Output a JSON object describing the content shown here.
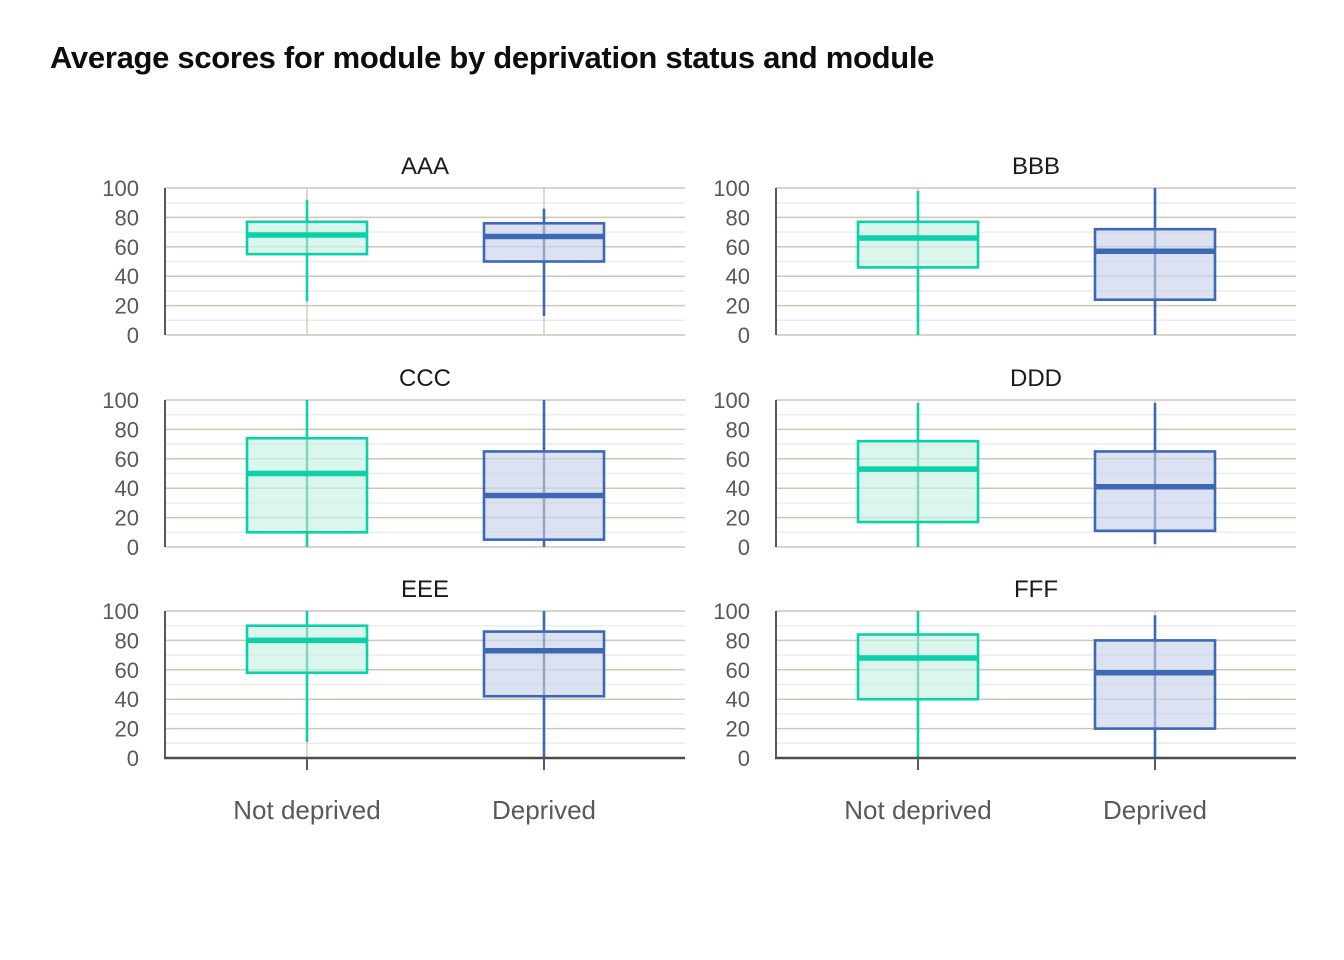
{
  "title": "Average scores for module by deprivation status and module",
  "colors": {
    "background": "#ffffff",
    "title_text": "#0d0d0d",
    "facet_title_text": "#1a1a1a",
    "axis_line": "#595959",
    "bottom_axis_line": "#4d4d4d",
    "tick_label_text": "#595959",
    "grid_major": "#cdc7b5",
    "grid_minor": "#ebebeb",
    "grid_vertical": "#c6c2b5",
    "not_deprived_stroke": "#0bd0a8",
    "not_deprived_fill": "#c9f2e5",
    "deprived_stroke": "#3c68b4",
    "deprived_fill": "#ccd4ec"
  },
  "chart_data": {
    "type": "boxplot-facets",
    "title": "Average scores for module by deprivation status and module",
    "group_labels": [
      "Not deprived",
      "Deprived"
    ],
    "y_axis": {
      "min": 0,
      "max": 100,
      "major_step": 20,
      "minor_step": 10,
      "tick_labels": [
        "0",
        "20",
        "40",
        "60",
        "80",
        "100"
      ]
    },
    "facets": [
      {
        "label": "AAA",
        "series": [
          {
            "group": "Not deprived",
            "whisker_low": 23,
            "q1": 55,
            "median": 68,
            "q3": 77,
            "whisker_high": 92
          },
          {
            "group": "Deprived",
            "whisker_low": 13,
            "q1": 50,
            "median": 67,
            "q3": 76,
            "whisker_high": 86
          }
        ]
      },
      {
        "label": "BBB",
        "series": [
          {
            "group": "Not deprived",
            "whisker_low": 0,
            "q1": 46,
            "median": 66,
            "q3": 77,
            "whisker_high": 98
          },
          {
            "group": "Deprived",
            "whisker_low": 0,
            "q1": 24,
            "median": 57,
            "q3": 72,
            "whisker_high": 100
          }
        ]
      },
      {
        "label": "CCC",
        "series": [
          {
            "group": "Not deprived",
            "whisker_low": 0,
            "q1": 10,
            "median": 50,
            "q3": 74,
            "whisker_high": 100
          },
          {
            "group": "Deprived",
            "whisker_low": 0,
            "q1": 5,
            "median": 35,
            "q3": 65,
            "whisker_high": 100
          }
        ]
      },
      {
        "label": "DDD",
        "series": [
          {
            "group": "Not deprived",
            "whisker_low": 0,
            "q1": 17,
            "median": 53,
            "q3": 72,
            "whisker_high": 98
          },
          {
            "group": "Deprived",
            "whisker_low": 2,
            "q1": 11,
            "median": 41,
            "q3": 65,
            "whisker_high": 98
          }
        ]
      },
      {
        "label": "EEE",
        "series": [
          {
            "group": "Not deprived",
            "whisker_low": 11,
            "q1": 58,
            "median": 80,
            "q3": 90,
            "whisker_high": 100
          },
          {
            "group": "Deprived",
            "whisker_low": 0,
            "q1": 42,
            "median": 73,
            "q3": 86,
            "whisker_high": 100
          }
        ]
      },
      {
        "label": "FFF",
        "series": [
          {
            "group": "Not deprived",
            "whisker_low": 0,
            "q1": 40,
            "median": 68,
            "q3": 84,
            "whisker_high": 100
          },
          {
            "group": "Deprived",
            "whisker_low": 0,
            "q1": 20,
            "median": 58,
            "q3": 80,
            "whisker_high": 97
          }
        ]
      }
    ],
    "layout": {
      "grid": "3 rows x 2 columns",
      "gridlines": "horizontal major (tan) every 20, minor (light gray) every 10, vertical gridline at each category",
      "legend": "none"
    }
  }
}
